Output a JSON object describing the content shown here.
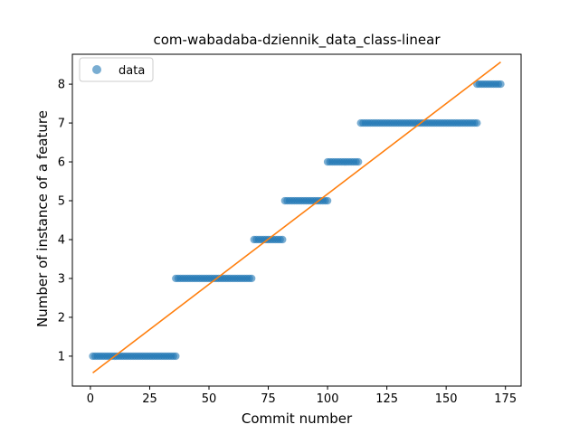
{
  "chart_data": {
    "type": "scatter",
    "title": "com-wabadaba-dziennik_data_class-linear",
    "xlabel": "Commit number",
    "ylabel": "Number of instance of a feature",
    "xlim": [
      -7.6,
      181.6
    ],
    "ylim": [
      0.23,
      8.77
    ],
    "xticks": [
      0,
      25,
      50,
      75,
      100,
      125,
      150,
      175
    ],
    "yticks": [
      1,
      2,
      3,
      4,
      5,
      6,
      7,
      8
    ],
    "legend": {
      "placement": "top-left",
      "entries": [
        "data"
      ]
    },
    "grid": false,
    "colors": {
      "data": "#1f77b4",
      "fit": "#ff7f0e"
    },
    "series": [
      {
        "name": "data",
        "kind": "scatter",
        "segments": [
          {
            "x_start": 1,
            "x_end": 36,
            "y": 1
          },
          {
            "x_start": 36,
            "x_end": 68,
            "y": 3
          },
          {
            "x_start": 69,
            "x_end": 81,
            "y": 4
          },
          {
            "x_start": 82,
            "x_end": 100,
            "y": 5
          },
          {
            "x_start": 100,
            "x_end": 113,
            "y": 6
          },
          {
            "x_start": 114,
            "x_end": 163,
            "y": 7
          },
          {
            "x_start": 163,
            "x_end": 173,
            "y": 8
          }
        ]
      },
      {
        "kind": "line",
        "x": [
          1,
          173
        ],
        "y": [
          0.57,
          8.57
        ]
      }
    ]
  }
}
